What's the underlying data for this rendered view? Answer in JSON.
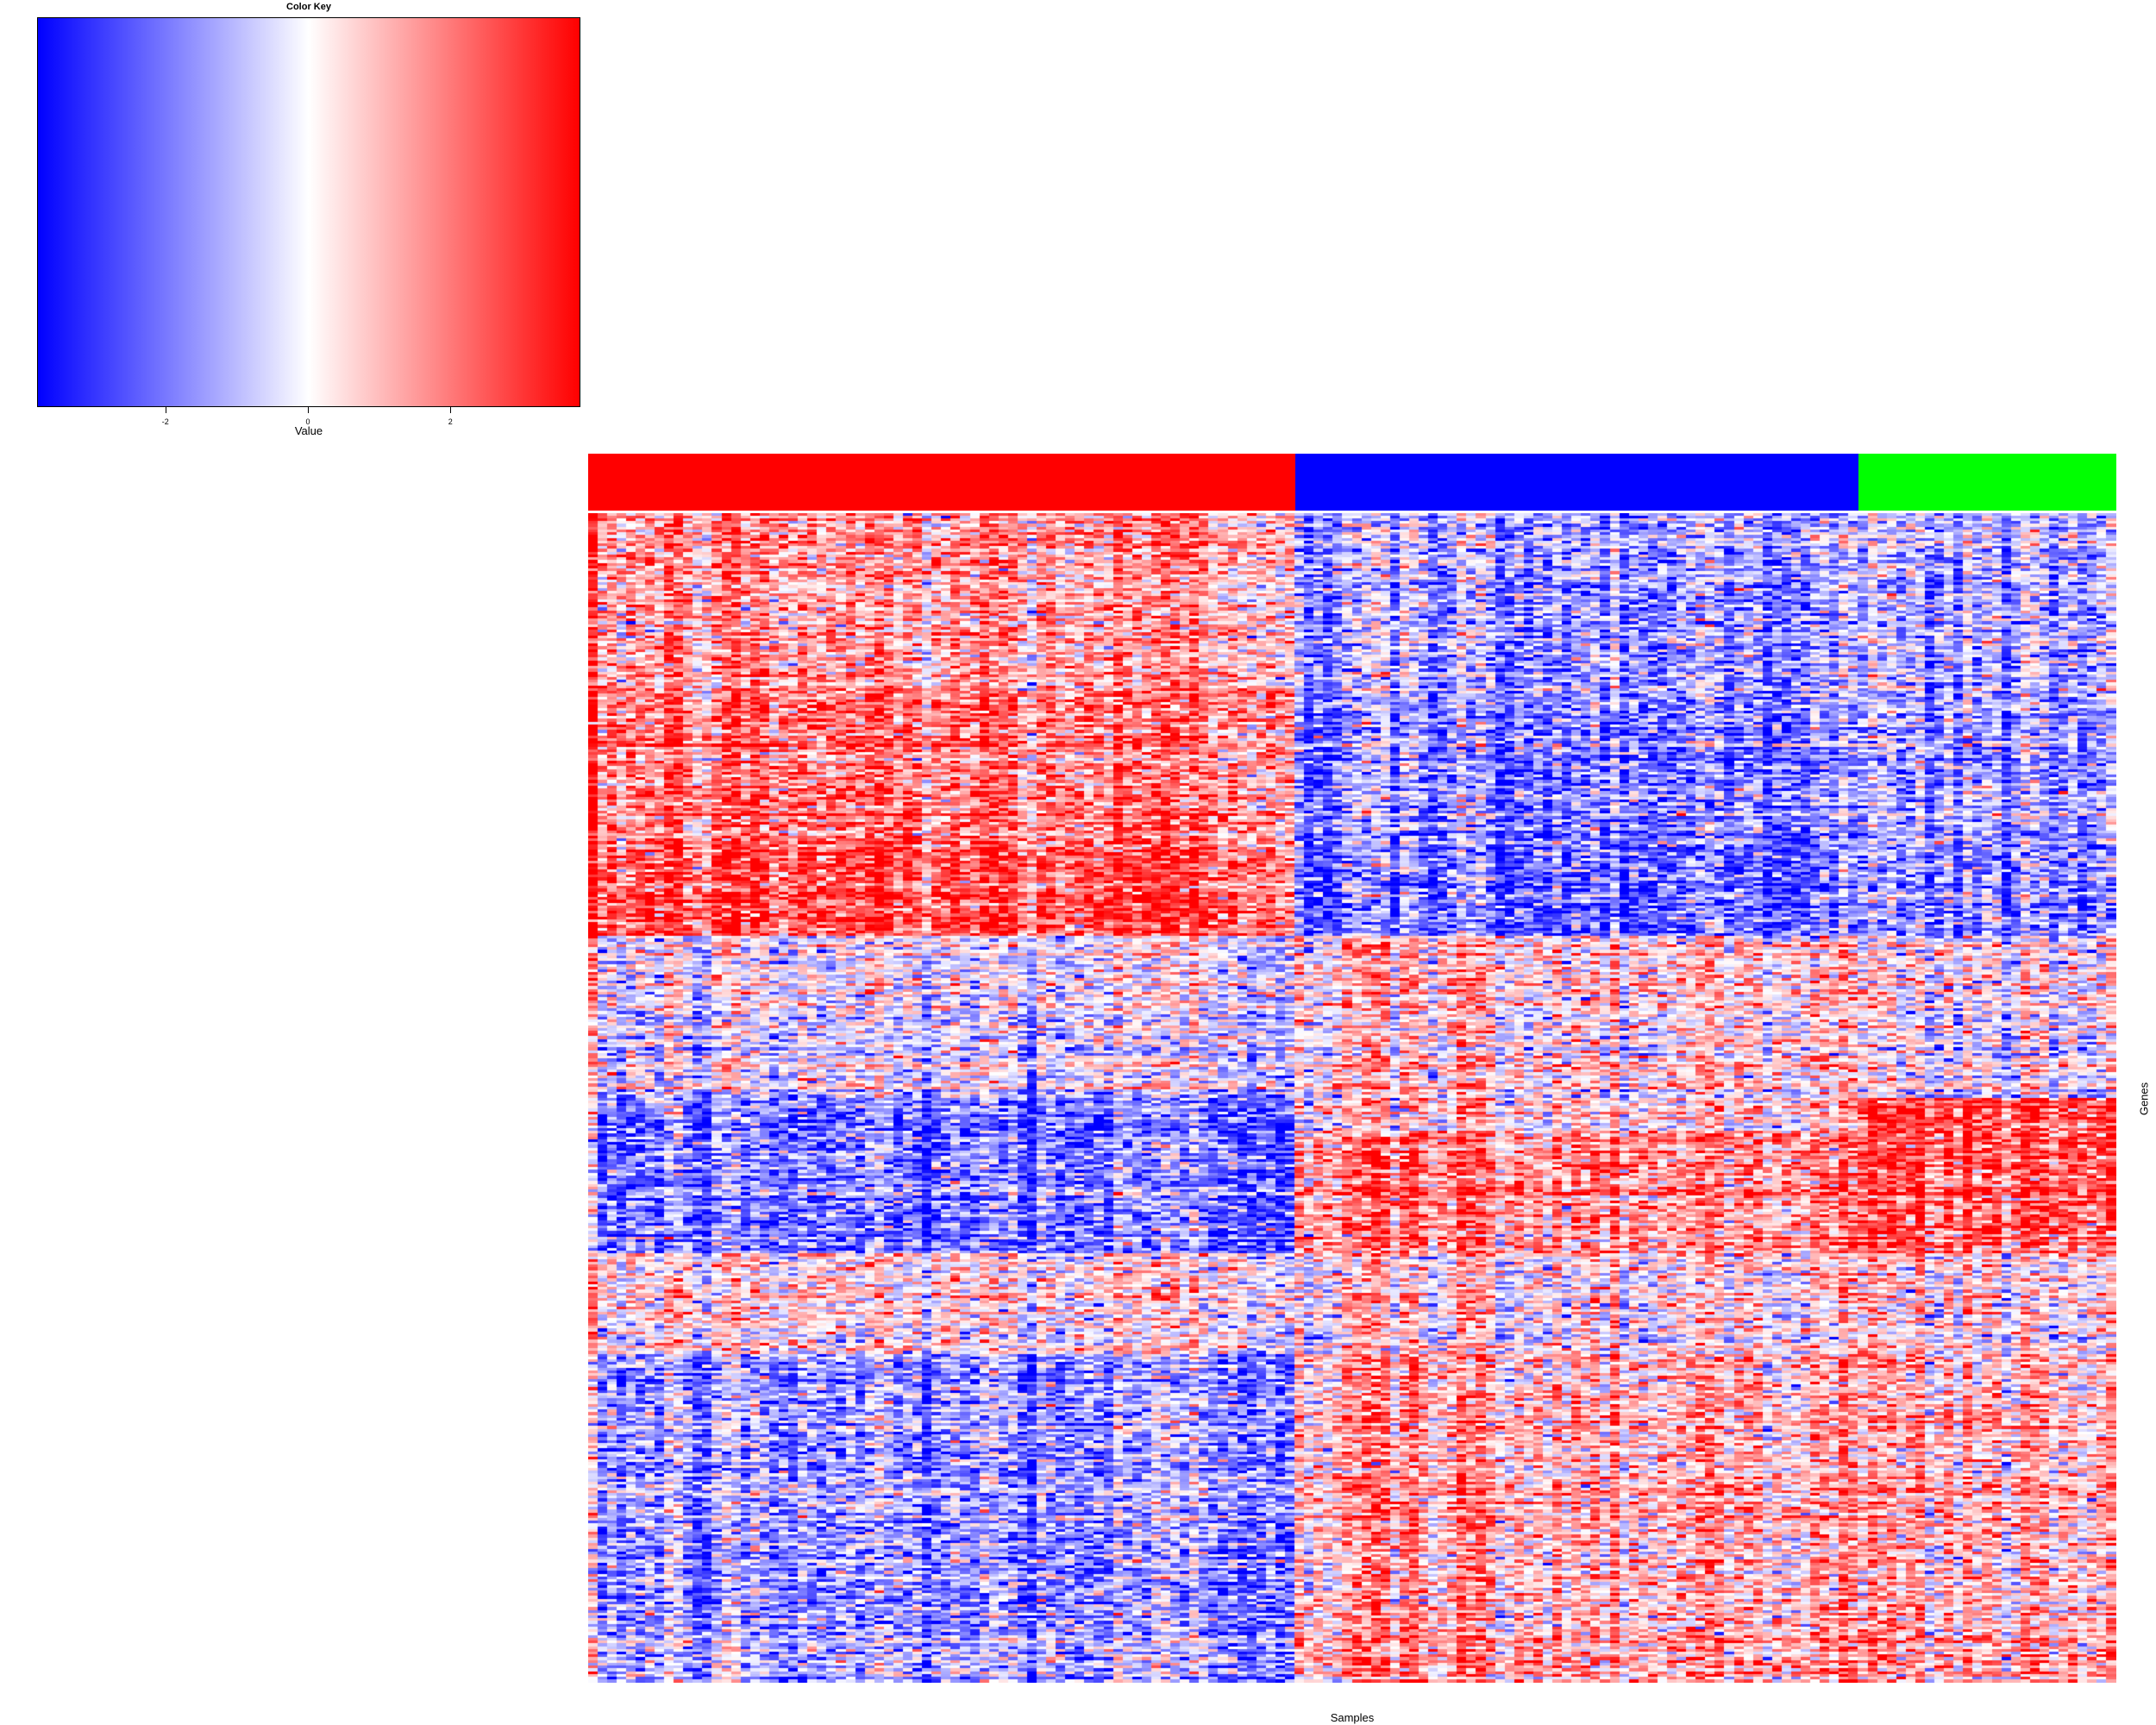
{
  "chart_data": {
    "type": "heatmap",
    "title": "",
    "xlabel": "Samples",
    "ylabel": "Genes",
    "color_key": {
      "title": "Color Key",
      "xlabel": "Value",
      "range": [
        -3.8,
        3.8
      ],
      "ticks": [
        -2,
        0,
        2
      ],
      "tick_labels": [
        "-2",
        "0",
        "2"
      ],
      "low_color": "#0000ff",
      "mid_color": "#ffffff",
      "high_color": "#ff0000"
    },
    "sample_groups": [
      {
        "color": "#ff0000",
        "n_samples": 74
      },
      {
        "color": "#0000ff",
        "n_samples": 59
      },
      {
        "color": "#00ff00",
        "n_samples": 27
      }
    ],
    "n_genes": 420,
    "gene_blocks": [
      {
        "n_genes": 64,
        "mean": [
          1.3,
          -1.3,
          -1.2
        ]
      },
      {
        "n_genes": 56,
        "mean": [
          2.0,
          -1.6,
          -1.4
        ]
      },
      {
        "n_genes": 32,
        "mean": [
          2.5,
          -2.2,
          -1.9
        ]
      },
      {
        "n_genes": 58,
        "mean": [
          -0.3,
          0.7,
          -0.1
        ]
      },
      {
        "n_genes": 12,
        "mean": [
          -2.2,
          0.6,
          2.6
        ]
      },
      {
        "n_genes": 44,
        "mean": [
          -2.0,
          1.8,
          2.4
        ]
      },
      {
        "n_genes": 36,
        "mean": [
          0.3,
          0.4,
          0.3
        ]
      },
      {
        "n_genes": 118,
        "mean": [
          -1.4,
          1.3,
          1.0
        ]
      }
    ]
  }
}
